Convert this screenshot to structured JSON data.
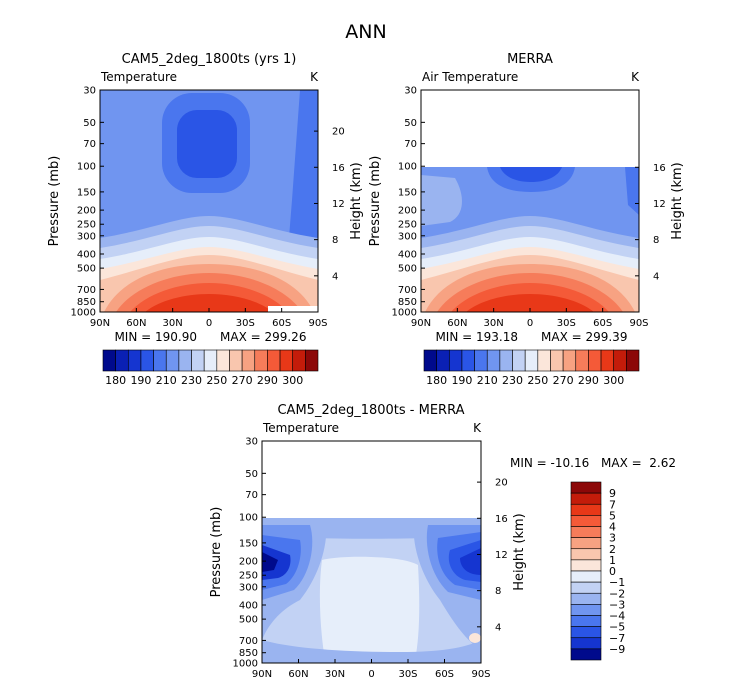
{
  "page_title": "ANN",
  "chart_data": [
    {
      "type": "heatmap",
      "id": "model",
      "title": "CAM5_2deg_1800ts (yrs 1)",
      "left_label": "Temperature",
      "units": "K",
      "ylabel": "Pressure (mb)",
      "y2label": "Height (km)",
      "pressure_ticks": [
        "30",
        "50",
        "70",
        "100",
        "150",
        "200",
        "250",
        "300",
        "400",
        "500",
        "700",
        "850",
        "1000"
      ],
      "height_ticks": [
        "20",
        "16",
        "12",
        "8",
        "4"
      ],
      "lat_ticks": [
        "90N",
        "60N",
        "30N",
        "0",
        "30S",
        "60S",
        "90S"
      ],
      "ylim": [
        30,
        1000
      ],
      "xlim": [
        "90N",
        "90S"
      ],
      "min_label": "MIN = 190.90",
      "max_label": "MAX = 299.26",
      "min": 190.9,
      "max": 299.26
    },
    {
      "type": "heatmap",
      "id": "obs",
      "title": "MERRA",
      "left_label": "Air Temperature",
      "units": "K",
      "ylabel": "Pressure (mb)",
      "y2label": "Height (km)",
      "pressure_ticks": [
        "30",
        "50",
        "70",
        "100",
        "150",
        "200",
        "250",
        "300",
        "400",
        "500",
        "700",
        "850",
        "1000"
      ],
      "height_ticks": [
        "16",
        "12",
        "8",
        "4"
      ],
      "lat_ticks": [
        "90N",
        "60N",
        "30N",
        "0",
        "30S",
        "60S",
        "90S"
      ],
      "ylim": [
        30,
        1000
      ],
      "data_top_pressure": 100,
      "min_label": "MIN = 193.18",
      "max_label": "MAX = 299.39",
      "min": 193.18,
      "max": 299.39
    },
    {
      "type": "heatmap",
      "id": "diff",
      "title": "CAM5_2deg_1800ts - MERRA",
      "left_label": "Temperature",
      "units": "K",
      "ylabel": "Pressure (mb)",
      "y2label": "Height (km)",
      "pressure_ticks": [
        "30",
        "50",
        "70",
        "100",
        "150",
        "200",
        "250",
        "300",
        "400",
        "500",
        "700",
        "850",
        "1000"
      ],
      "height_ticks": [
        "20",
        "16",
        "12",
        "8",
        "4"
      ],
      "lat_ticks": [
        "90N",
        "60N",
        "30N",
        "0",
        "30S",
        "60S",
        "90S"
      ],
      "ylim": [
        30,
        1000
      ],
      "data_top_pressure": 100,
      "min_label": "MIN = -10.16",
      "max_label": "MAX =",
      "max_value_label": "2.62",
      "min": -10.16,
      "max": 2.62
    }
  ],
  "colorbar_abs": {
    "labels": [
      "180",
      "190",
      "210",
      "230",
      "250",
      "270",
      "290",
      "300"
    ],
    "colors": [
      "#000a8c",
      "#0a20b4",
      "#1535d0",
      "#2a55e6",
      "#4a76ee",
      "#7095f0",
      "#9ab4f0",
      "#c2d2f4",
      "#e6eefa",
      "#fbe6da",
      "#f9c6ae",
      "#f7a282",
      "#f67c5a",
      "#f45a38",
      "#e83818",
      "#c41c0a",
      "#8c0808"
    ]
  },
  "colorbar_diff": {
    "labels": [
      "9",
      "7",
      "5",
      "4",
      "3",
      "2",
      "1",
      "0",
      "−1",
      "−2",
      "−3",
      "−4",
      "−5",
      "−7",
      "−9"
    ],
    "colors": [
      "#8c0808",
      "#c41c0a",
      "#e83818",
      "#f45a38",
      "#f67c5a",
      "#f7a282",
      "#f9c6ae",
      "#fbe6da",
      "#e6eefa",
      "#c2d2f4",
      "#9ab4f0",
      "#7095f0",
      "#4a76ee",
      "#2a55e6",
      "#1535d0",
      "#000a8c"
    ]
  }
}
